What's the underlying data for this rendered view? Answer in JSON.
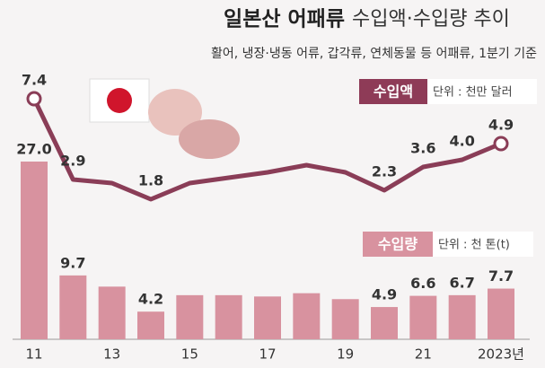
{
  "chart_data": {
    "type": "bar",
    "title": "일본산 어패류",
    "title_suffix": "수입액·수입량 추이",
    "subtitle": "활어, 냉장·냉동 어류, 갑각류, 연체동물 등 어패류, 1분기 기준",
    "categories": [
      "11",
      null,
      "13",
      null,
      "15",
      null,
      "17",
      null,
      "19",
      null,
      "21",
      null,
      "2023년"
    ],
    "series": [
      {
        "name": "수입액",
        "unit": "단위 : 천만 달러",
        "type": "line",
        "axis": "y2",
        "color": "#8a3d57",
        "values": [
          7.4,
          2.9,
          2.7,
          1.8,
          2.7,
          3.0,
          3.3,
          3.7,
          3.3,
          2.3,
          3.6,
          4.0,
          4.9
        ],
        "value_labels": [
          "7.4",
          "2.9",
          null,
          "1.8",
          null,
          null,
          null,
          null,
          null,
          "2.3",
          "3.6",
          "4.0",
          "4.9"
        ]
      },
      {
        "name": "수입량",
        "unit": "단위 : 천 톤(t)",
        "type": "bar",
        "color": "#d8929f",
        "values": [
          27.0,
          9.7,
          8.0,
          4.2,
          6.7,
          6.7,
          6.5,
          7.0,
          6.1,
          4.9,
          6.6,
          6.7,
          7.7
        ],
        "value_labels": [
          "27.0",
          "9.7",
          null,
          "4.2",
          null,
          null,
          null,
          null,
          null,
          "4.9",
          "6.6",
          "6.7",
          "7.7"
        ]
      }
    ]
  }
}
